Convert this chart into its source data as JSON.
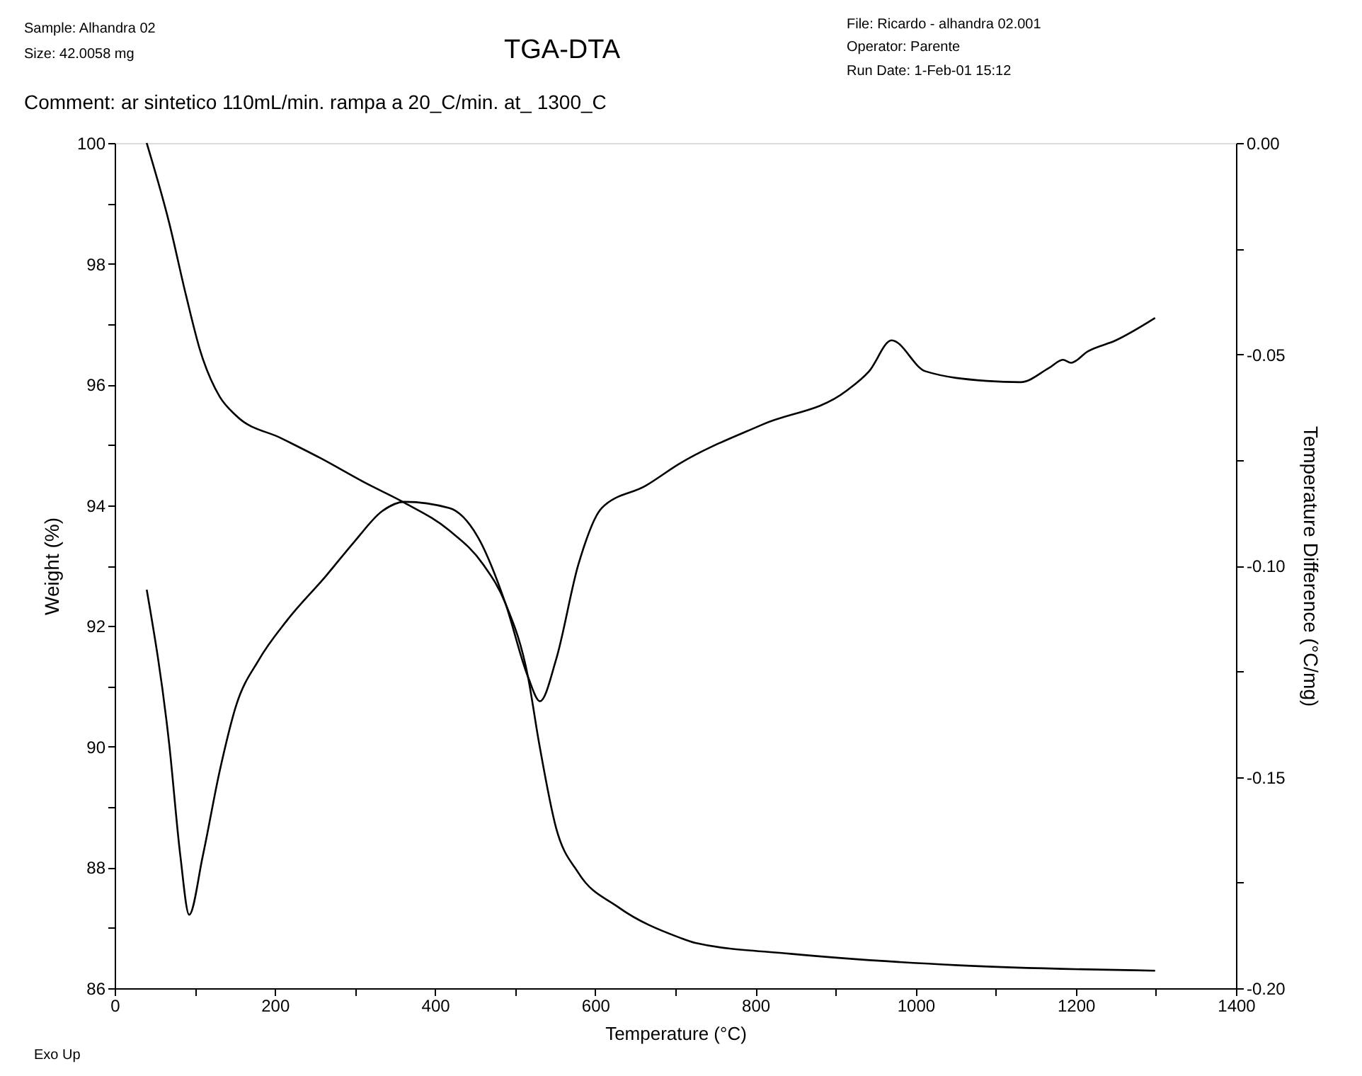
{
  "chart_data": {
    "type": "line",
    "title": "TGA-DTA",
    "xlabel": "Temperature (°C)",
    "ylabel": "Weight (%)",
    "y2label": "Temperature Difference (°C/mg)",
    "annotations": [
      "Sample: Alhandra 02",
      "Size:   42.0058 mg",
      "Comment: ar sintetico 110mL/min.  rampa a 20_C/min. at_ 1300_C",
      "File: Ricardo - alhandra 02.001",
      "Operator: Parente",
      "Run Date: 1-Feb-01 15:12",
      "Exo Up"
    ],
    "xlim": [
      0,
      1400
    ],
    "xticks": [
      0,
      {
        "value": 100,
        "label": null
      },
      200,
      {
        "value": 300,
        "label": null
      },
      400,
      {
        "value": 500,
        "label": null
      },
      600,
      {
        "value": 700,
        "label": null
      },
      800,
      {
        "value": 900,
        "label": null
      },
      1000,
      {
        "value": 1100,
        "label": null
      },
      1200,
      {
        "value": 1300,
        "label": null
      },
      1400
    ],
    "ylim": [
      86,
      100
    ],
    "yticks": [
      86,
      {
        "value": 87,
        "label": null
      },
      88,
      {
        "value": 89,
        "label": null
      },
      90,
      {
        "value": 91,
        "label": null
      },
      92,
      {
        "value": 93,
        "label": null
      },
      94,
      {
        "value": 95,
        "label": null
      },
      96,
      {
        "value": 97,
        "label": null
      },
      98,
      {
        "value": 99,
        "label": null
      },
      100
    ],
    "y2lim": [
      -0.2,
      0.0
    ],
    "y2ticks": [
      {
        "value": -0.2,
        "label": "-0.20"
      },
      {
        "value": -0.175,
        "label": null
      },
      {
        "value": -0.15,
        "label": "-0.15"
      },
      {
        "value": -0.125,
        "label": null
      },
      {
        "value": -0.1,
        "label": "-0.10"
      },
      {
        "value": -0.075,
        "label": null
      },
      {
        "value": -0.05,
        "label": "-0.05"
      },
      {
        "value": -0.025,
        "label": null
      },
      {
        "value": 0.0,
        "label": "0.00"
      }
    ],
    "grid": false,
    "line_style": "solid",
    "series": [
      {
        "color": "#000000",
        "x": [
          40,
          68,
          89,
          107,
          131,
          152,
          208,
          257,
          313,
          362,
          418,
          460,
          488,
          516,
          530,
          551,
          579,
          628,
          705,
          725,
          844,
          1054,
          1299
        ],
        "values": [
          100.0,
          98.68,
          97.48,
          96.55,
          95.8,
          95.48,
          95.11,
          94.78,
          94.37,
          94.04,
          93.58,
          93.02,
          92.37,
          91.16,
          90.05,
          88.66,
          87.91,
          87.35,
          86.84,
          86.75,
          86.57,
          86.38,
          86.29
        ]
      },
      {
        "color": "#000000",
        "axis": "y2",
        "x": [
          40,
          68,
          82,
          93,
          110,
          131,
          152,
          180,
          215,
          264,
          299,
          334,
          362,
          418,
          453,
          488,
          516,
          531,
          551,
          579,
          608,
          663,
          705,
          809,
          914,
          942,
          970,
          1012,
          1089,
          1131,
          1166,
          1184,
          1194,
          1215,
          1250,
          1299
        ],
        "values": [
          -0.1057,
          -0.1421,
          -0.1687,
          -0.1826,
          -0.1687,
          -0.1487,
          -0.1329,
          -0.1223,
          -0.113,
          -0.1024,
          -0.0944,
          -0.0871,
          -0.0849,
          -0.0864,
          -0.0931,
          -0.109,
          -0.1263,
          -0.1321,
          -0.1223,
          -0.0997,
          -0.0864,
          -0.0811,
          -0.0759,
          -0.0666,
          -0.0586,
          -0.054,
          -0.0467,
          -0.054,
          -0.0563,
          -0.0566,
          -0.0533,
          -0.0513,
          -0.052,
          -0.0493,
          -0.0467,
          -0.0414
        ]
      }
    ]
  }
}
